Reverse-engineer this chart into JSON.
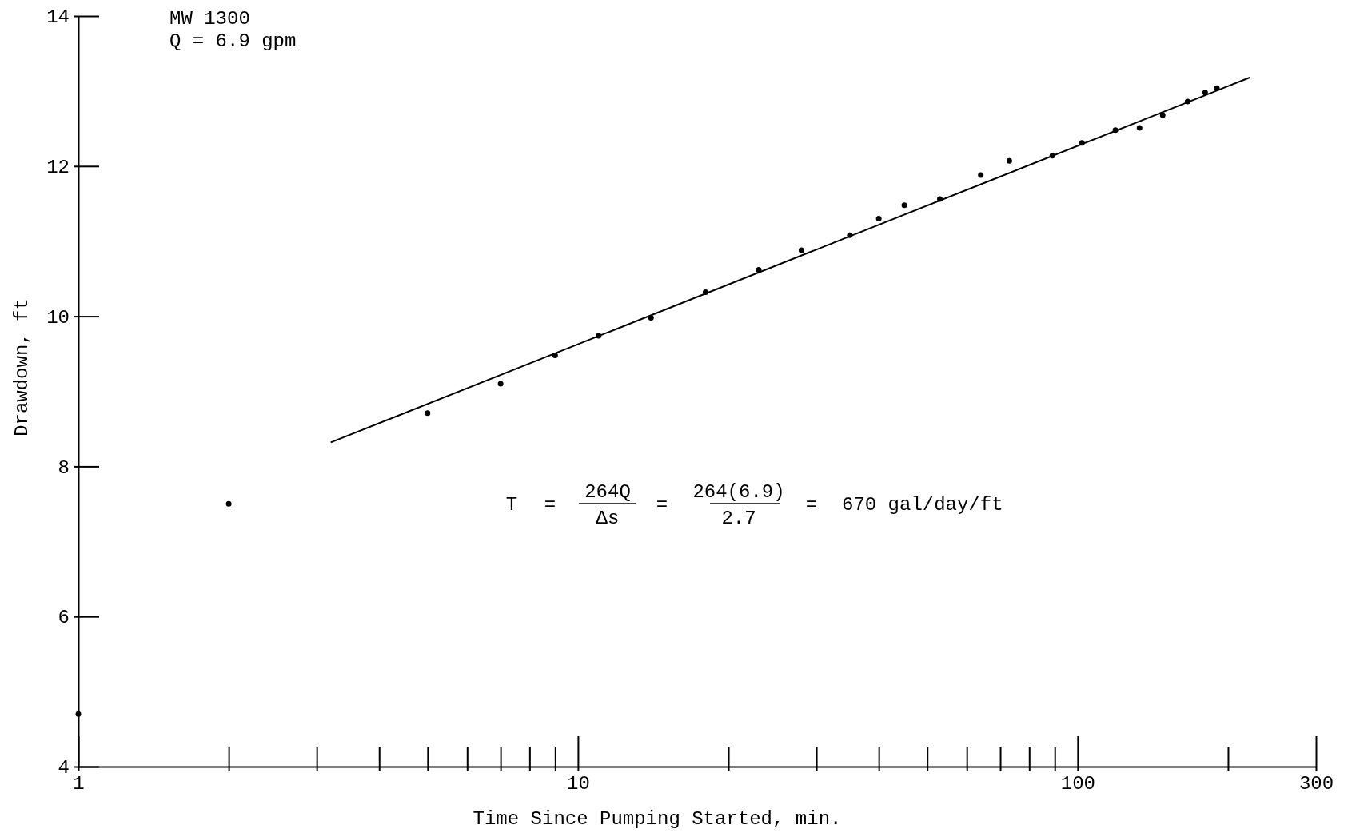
{
  "chart_data": {
    "type": "scatter",
    "xlabel": "Time Since Pumping Started, min.",
    "ylabel": "Drawdown, ft",
    "log": "x",
    "xlim": [
      1,
      300
    ],
    "ylim": [
      4,
      14
    ],
    "xticks": [
      1,
      {
        "value": 2,
        "label": null
      },
      {
        "value": 3,
        "label": null
      },
      {
        "value": 4,
        "label": null
      },
      {
        "value": 5,
        "label": null
      },
      {
        "value": 6,
        "label": null
      },
      {
        "value": 7,
        "label": null
      },
      {
        "value": 8,
        "label": null
      },
      {
        "value": 9,
        "label": null
      },
      10,
      {
        "value": 20,
        "label": null
      },
      {
        "value": 30,
        "label": null
      },
      {
        "value": 40,
        "label": null
      },
      {
        "value": 50,
        "label": null
      },
      {
        "value": 60,
        "label": null
      },
      {
        "value": 70,
        "label": null
      },
      {
        "value": 80,
        "label": null
      },
      {
        "value": 90,
        "label": null
      },
      100,
      {
        "value": 200,
        "label": null
      },
      300
    ],
    "yticks": [
      4,
      6,
      8,
      10,
      12,
      14
    ],
    "annotations": [
      "MW 1300",
      "Q = 6.9 gpm",
      "T",
      "=",
      "264Q",
      "Δs",
      "=",
      "264(6.9)",
      "2.7",
      "=",
      "670 gal/day/ft"
    ],
    "series": [
      {
        "marker": "circle",
        "color": "#000000",
        "x": [
          1,
          2,
          5,
          7,
          9,
          11,
          14,
          18,
          23,
          28,
          35,
          40,
          45,
          53,
          64,
          73,
          89,
          102,
          119,
          133,
          148,
          166,
          180,
          190
        ],
        "values": [
          4.7,
          7.5,
          8.71,
          9.1,
          9.48,
          9.74,
          9.98,
          10.32,
          10.62,
          10.88,
          11.08,
          11.3,
          11.48,
          11.56,
          11.88,
          12.07,
          12.14,
          12.31,
          12.48,
          12.51,
          12.68,
          12.86,
          12.98,
          13.04
        ]
      },
      {
        "type": "line",
        "color": "#000000",
        "x": [
          3.2,
          221
        ],
        "values": [
          8.32,
          13.18
        ]
      }
    ]
  }
}
